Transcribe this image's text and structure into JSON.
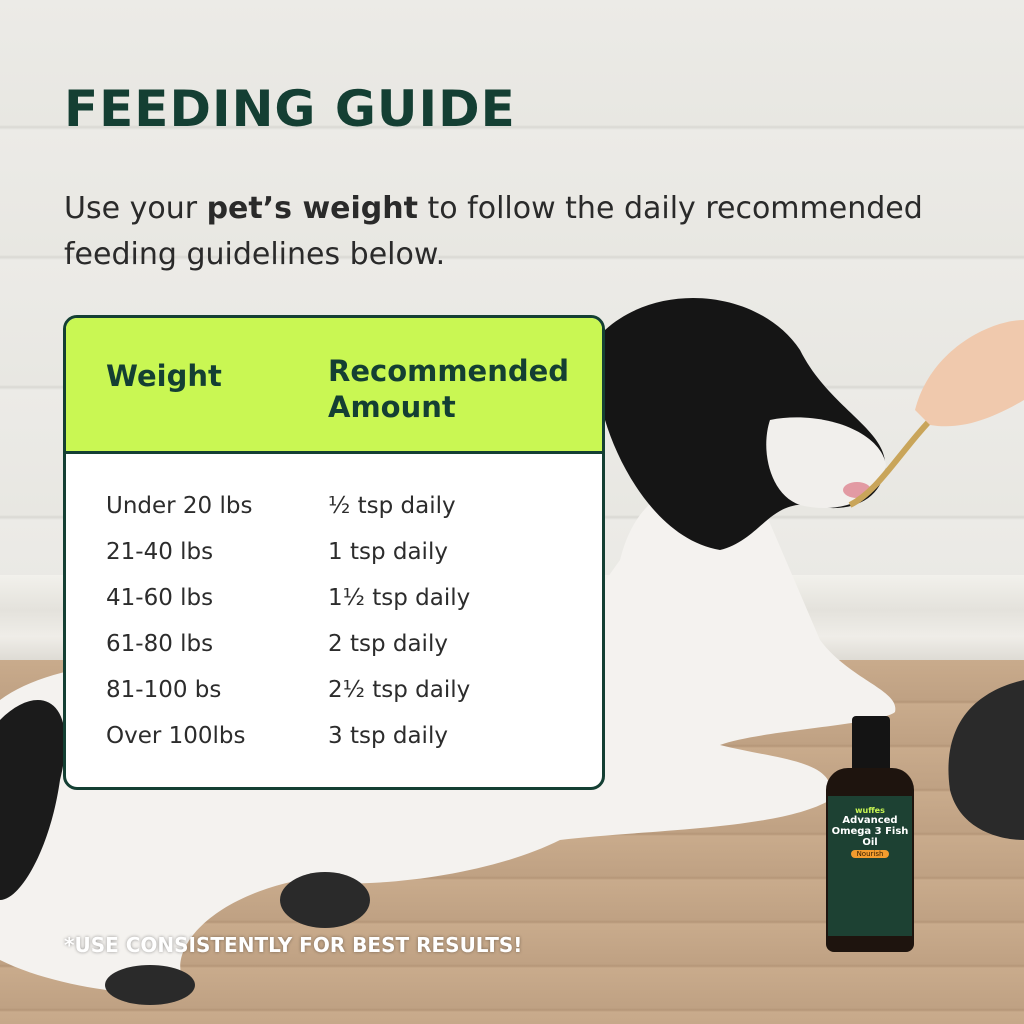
{
  "title": "FEEDING GUIDE",
  "intro": {
    "before": "Use your ",
    "bold": "pet’s weight",
    "after": " to follow the daily recommended feeding guidelines below."
  },
  "table": {
    "headers": [
      "Weight",
      "Recommended Amount"
    ],
    "rows": [
      {
        "weight": "Under 20 lbs",
        "amount": "½ tsp daily"
      },
      {
        "weight": "21-40 lbs",
        "amount": "1 tsp daily"
      },
      {
        "weight": "41-60 lbs",
        "amount": "1½ tsp daily"
      },
      {
        "weight": "61-80 lbs",
        "amount": "2 tsp daily"
      },
      {
        "weight": "81-100 bs",
        "amount": "2½ tsp daily"
      },
      {
        "weight": "Over 100lbs",
        "amount": "3 tsp daily"
      }
    ]
  },
  "note": "*USE CONSISTENTLY FOR BEST RESULTS!",
  "bottle": {
    "brand": "wuffes",
    "product": "Advanced Omega 3 Fish Oil",
    "badge": "Nourish"
  },
  "colors": {
    "accent": "#c9f753",
    "dark_green": "#143f33"
  }
}
